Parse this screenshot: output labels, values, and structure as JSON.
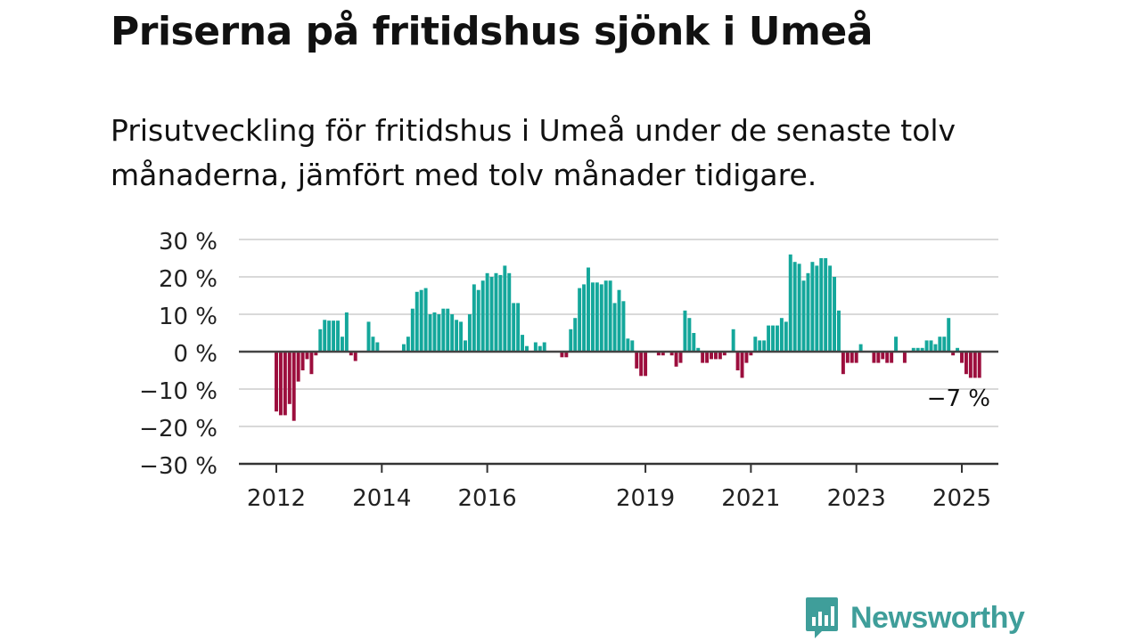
{
  "header": {
    "title": "Priserna på fritidshus sjönk i Umeå",
    "subtitle": "Prisutveckling för fritidshus i Umeå under de senaste tolv månaderna, jämfört med tolv månader tidigare."
  },
  "brand": {
    "name": "Newsworthy",
    "icon": "newsworthy-logo-icon",
    "color": "#3f9e9a"
  },
  "colors": {
    "positive": "#14a79b",
    "negative": "#9c0e3d",
    "grid": "#d9d9d9",
    "zero_line": "#444444",
    "axis": "#333333"
  },
  "chart_data": {
    "type": "bar",
    "title": "",
    "xlabel": "",
    "ylabel": "",
    "ylim": [
      -30,
      30
    ],
    "y_ticks": [
      30,
      20,
      10,
      0,
      -10,
      -20,
      -30
    ],
    "y_tick_labels": [
      "30 %",
      "20 %",
      "10 %",
      "0 %",
      "−10 %",
      "−20 %",
      "−30 %"
    ],
    "x_ticks": [
      {
        "label": "2012",
        "year": 2012
      },
      {
        "label": "2014",
        "year": 2014
      },
      {
        "label": "2016",
        "year": 2016
      },
      {
        "label": "2019",
        "year": 2019
      },
      {
        "label": "2021",
        "year": 2021
      },
      {
        "label": "2023",
        "year": 2023
      },
      {
        "label": "2025",
        "year": 2025
      }
    ],
    "start_month": "2012-01",
    "frequency": "monthly",
    "grid": true,
    "annotation": {
      "label": "−7 %",
      "month": "2025-01"
    },
    "values": [
      -16,
      -17,
      -17,
      -14,
      -18.5,
      -8,
      -5,
      -2,
      -6,
      -1,
      6,
      8.5,
      8.3,
      8.3,
      8.3,
      4,
      10.5,
      -1,
      -2.5,
      0,
      0,
      8,
      4,
      2.5,
      0,
      0,
      0,
      0,
      0,
      2,
      4,
      11.5,
      16,
      16.5,
      17,
      10,
      10.5,
      10,
      11.5,
      11.5,
      10,
      8.5,
      8,
      3,
      10,
      18,
      16.5,
      19,
      21,
      20,
      21,
      20.5,
      23,
      21,
      13,
      13,
      4.5,
      1.5,
      0,
      2.5,
      1.5,
      2.5,
      0,
      0,
      0,
      -1.5,
      -1.5,
      6,
      9,
      17,
      18,
      22.5,
      18.5,
      18.5,
      18,
      19,
      19,
      13,
      16.5,
      13.5,
      3.5,
      3,
      -4.5,
      -6.5,
      -6.5,
      0,
      0,
      -1,
      -1,
      0,
      -1,
      -4,
      -3,
      11,
      9,
      5,
      1,
      -3,
      -3,
      -2,
      -2,
      -2,
      -1,
      0,
      6,
      -5,
      -7,
      -3,
      -1,
      4,
      3,
      3,
      7,
      7,
      7,
      9,
      8,
      26,
      24,
      23.5,
      19,
      21,
      24,
      23,
      25,
      25,
      23,
      20,
      11,
      -6,
      -3,
      -3,
      -3,
      2,
      0,
      0,
      -3,
      -3,
      -2,
      -3,
      -3,
      4,
      0,
      -3,
      0,
      1,
      1,
      1,
      3,
      3,
      2,
      4,
      4,
      9,
      -1,
      1,
      -3,
      -6,
      -7,
      -7,
      -7
    ]
  }
}
